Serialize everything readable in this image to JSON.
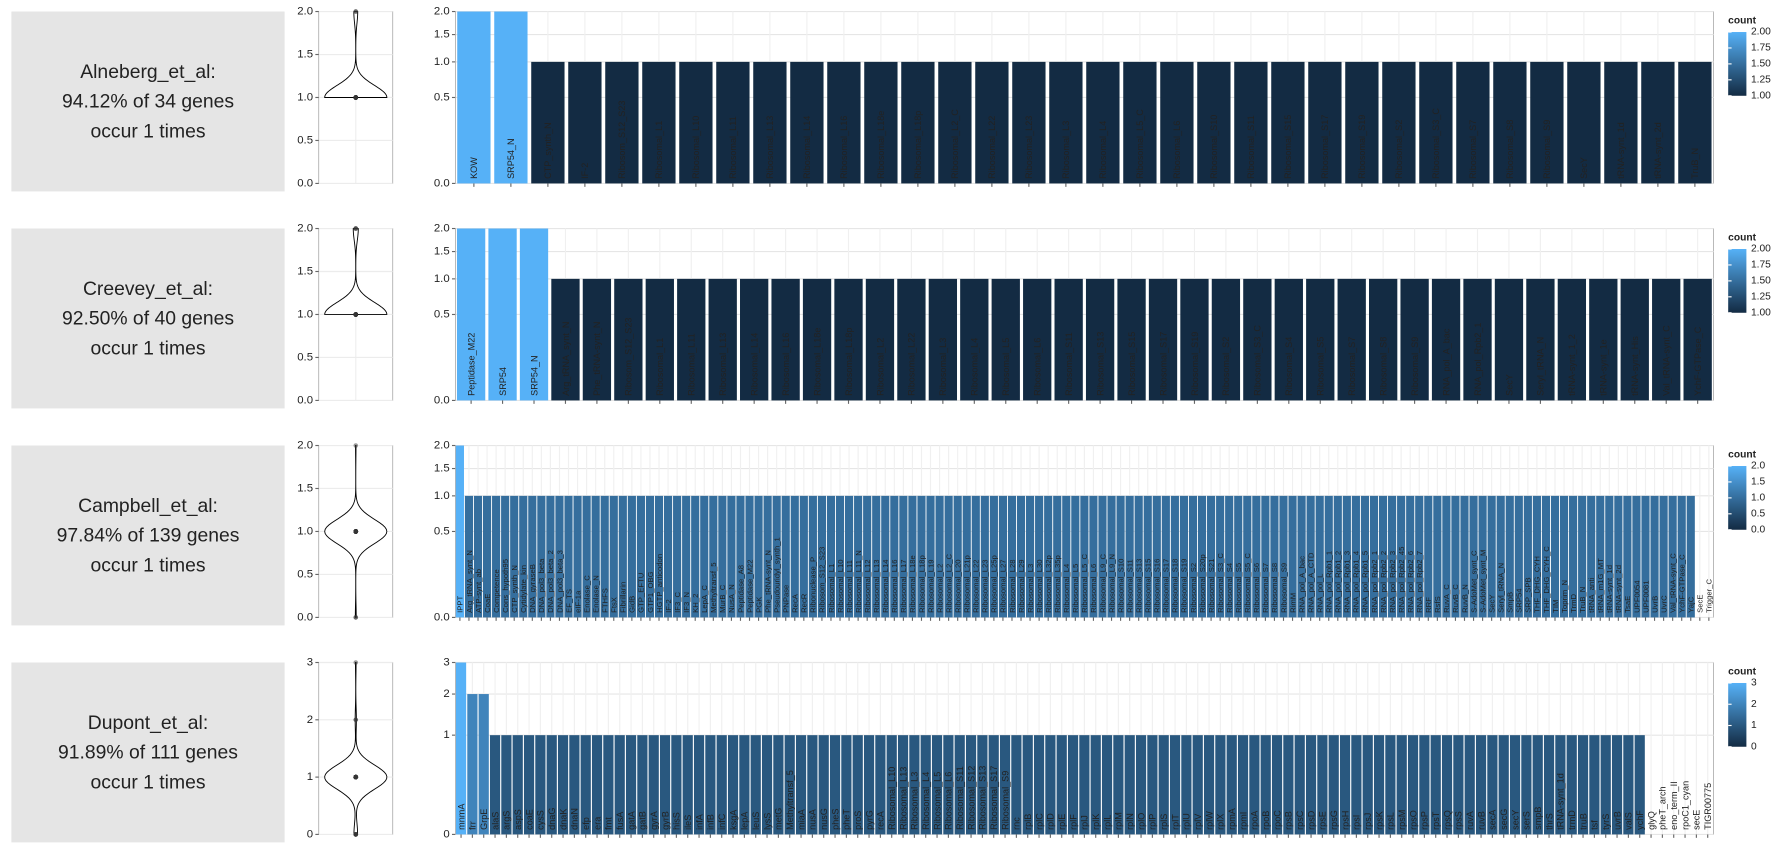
{
  "chart_data": [
    {
      "type": "bar",
      "title_lines": [
        "Alneberg_et_al:",
        "94.12% of 34 genes",
        "occur 1 times"
      ],
      "categories": [
        "KOW",
        "SRP54_N",
        "CTP_synth_N",
        "IF-2",
        "Ribosom_S12_S23",
        "Ribosomal_L1",
        "Ribosomal_L10",
        "Ribosomal_L11",
        "Ribosomal_L13",
        "Ribosomal_L14",
        "Ribosomal_L16",
        "Ribosomal_L18e",
        "Ribosomal_L18p",
        "Ribosomal_L2_C",
        "Ribosomal_L22",
        "Ribosomal_L23",
        "Ribosomal_L3",
        "Ribosomal_L4",
        "Ribosomal_L5_C",
        "Ribosomal_L6",
        "Ribosomal_S10",
        "Ribosomal_S11",
        "Ribosomal_S15",
        "Ribosomal_S17",
        "Ribosomal_S19",
        "Ribosomal_S2",
        "Ribosomal_S3_C",
        "Ribosomal_S7",
        "Ribosomal_S8",
        "Ribosomal_S9",
        "SecY",
        "tRNA-synt_1d",
        "tRNA-synt_2d",
        "TruB_N"
      ],
      "values": [
        2,
        2,
        1,
        1,
        1,
        1,
        1,
        1,
        1,
        1,
        1,
        1,
        1,
        1,
        1,
        1,
        1,
        1,
        1,
        1,
        1,
        1,
        1,
        1,
        1,
        1,
        1,
        1,
        1,
        1,
        1,
        1,
        1,
        1
      ],
      "ylim": [
        0,
        2
      ],
      "yscale": "sqrt",
      "yticks": [
        {
          "value": 0,
          "label": "0.0"
        },
        0.5,
        {
          "value": 1,
          "label": "1.0"
        },
        1.5,
        {
          "value": 2,
          "label": "2.0"
        }
      ],
      "violin": {
        "ylim": [
          0,
          2
        ],
        "yticks": [
          {
            "value": 0,
            "label": "0.0"
          },
          0.5,
          {
            "value": 1,
            "label": "1.0"
          },
          1.5,
          {
            "value": 2,
            "label": "2.0"
          }
        ]
      },
      "legend": {
        "title": "count",
        "lim": [
          1,
          2
        ],
        "color_low": "#132B43",
        "color_high": "#56B1F7",
        "ticks": [
          {
            "value": 2,
            "label": "2.00"
          },
          {
            "value": 1.75,
            "label": "1.75"
          },
          {
            "value": 1.5,
            "label": "1.50"
          },
          {
            "value": 1.25,
            "label": "1.25"
          },
          {
            "value": 1,
            "label": "1.00"
          }
        ]
      }
    },
    {
      "type": "bar",
      "title_lines": [
        "Creevey_et_al:",
        "92.50% of 40 genes",
        "occur 1 times"
      ],
      "categories": [
        "Peptidase_M22",
        "SRP54",
        "SRP54_N",
        "Arg_tRNA_synt_N",
        "Phe_tRNA-synt_N",
        "Ribosom_S12_S23",
        "Ribosomal_L1",
        "Ribosomal_L11",
        "Ribosomal_L13",
        "Ribosomal_L14",
        "Ribosomal_L16",
        "Ribosomal_L18e",
        "Ribosomal_L18p",
        "Ribosomal_L2",
        "Ribosomal_L22",
        "Ribosomal_L3",
        "Ribosomal_L4",
        "Ribosomal_L5",
        "Ribosomal_L6",
        "Ribosomal_S11",
        "Ribosomal_S13",
        "Ribosomal_S15",
        "Ribosomal_S17",
        "Ribosomal_S19",
        "Ribosomal_S2",
        "Ribosomal_S3_C",
        "Ribosomal_S4",
        "Ribosomal_S5",
        "Ribosomal_S7",
        "Ribosomal_S8",
        "Ribosomal_S9",
        "RNA_pol_A_bac",
        "RNA_pol_Rpb2_1",
        "SecY",
        "Seryl_tRNA_N",
        "tRNA-synt_1_2",
        "tRNA-synt_1e",
        "tRNA-synt_His",
        "Val_tRNA-synt_C",
        "YchF-GTPase_C"
      ],
      "values": [
        2,
        2,
        2,
        1,
        1,
        1,
        1,
        1,
        1,
        1,
        1,
        1,
        1,
        1,
        1,
        1,
        1,
        1,
        1,
        1,
        1,
        1,
        1,
        1,
        1,
        1,
        1,
        1,
        1,
        1,
        1,
        1,
        1,
        1,
        1,
        1,
        1,
        1,
        1,
        1
      ],
      "ylim": [
        0,
        2
      ],
      "yscale": "sqrt",
      "yticks": [
        {
          "value": 0,
          "label": "0.0"
        },
        0.5,
        {
          "value": 1,
          "label": "1.0"
        },
        1.5,
        {
          "value": 2,
          "label": "2.0"
        }
      ],
      "violin": {
        "ylim": [
          0,
          2
        ],
        "yticks": [
          {
            "value": 0,
            "label": "0.0"
          },
          0.5,
          {
            "value": 1,
            "label": "1.0"
          },
          1.5,
          {
            "value": 2,
            "label": "2.0"
          }
        ]
      },
      "legend": {
        "title": "count",
        "lim": [
          1,
          2
        ],
        "color_low": "#132B43",
        "color_high": "#56B1F7",
        "ticks": [
          {
            "value": 2,
            "label": "2.00"
          },
          {
            "value": 1.75,
            "label": "1.75"
          },
          {
            "value": 1.5,
            "label": "1.50"
          },
          {
            "value": 1.25,
            "label": "1.25"
          },
          {
            "value": 1,
            "label": "1.00"
          }
        ]
      }
    },
    {
      "type": "bar",
      "title_lines": [
        "Campbell_et_al:",
        "97.84% of 139 genes",
        "occur 1 times"
      ],
      "categories": [
        "IPPT",
        "Arg_tRNA_synt_N",
        "ATP-synt_ab",
        "CoaE",
        "Competence",
        "Cons_hypoth95",
        "CTP_synth_N",
        "Cytidylate_kin",
        "DNA_gyraseB",
        "DNA_pol3_beta",
        "DNA_pol3_beta_2",
        "DNA_pol3_beta_3",
        "EF_TS",
        "eIF-1a",
        "Enolase_C",
        "Enolase_N",
        "FTHFS",
        "FtsX",
        "Fibrillarin",
        "GidB",
        "GTP_EFTU",
        "GTP1_OBG",
        "HGTP_anticodon",
        "IF-2",
        "IF3_C",
        "IF3_N",
        "KH_2",
        "LepA_C",
        "Methyltransf_5",
        "MurB_C",
        "NusA_N",
        "Peptidase_A8",
        "Peptidase_M22",
        "PGK",
        "Phe_tRNA-synt_N",
        "Pseudouridyl_synth_1",
        "PNPase",
        "RecA",
        "RecR",
        "Ribonuclease_P",
        "Ribosom_S12_S23",
        "Ribosomal_L1",
        "Ribosomal_L10",
        "Ribosomal_L11",
        "Ribosomal_L11_N",
        "Ribosomal_L12",
        "Ribosomal_L13",
        "Ribosomal_L14",
        "Ribosomal_L16",
        "Ribosomal_L17",
        "Ribosomal_L18e",
        "Ribosomal_L18p",
        "Ribosomal_L19",
        "Ribosomal_L2",
        "Ribosomal_L2_C",
        "Ribosomal_L20",
        "Ribosomal_L21p",
        "Ribosomal_L22",
        "Ribosomal_L23",
        "Ribosomal_L25p",
        "Ribosomal_L27",
        "Ribosomal_L28",
        "Ribosomal_L29",
        "Ribosomal_L3",
        "Ribosomal_L30",
        "Ribosomal_L32p",
        "Ribosomal_L35p",
        "Ribosomal_L4",
        "Ribosomal_L5",
        "Ribosomal_L5_C",
        "Ribosomal_L6",
        "Ribosomal_L9_C",
        "Ribosomal_L9_N",
        "Ribosomal_S10",
        "Ribosomal_S11",
        "Ribosomal_S13",
        "Ribosomal_S15",
        "Ribosomal_S16",
        "Ribosomal_S17",
        "Ribosomal_S18",
        "Ribosomal_S19",
        "Ribosomal_S2",
        "Ribosomal_S20p",
        "Ribosomal_S21",
        "Ribosomal_S3_C",
        "Ribosomal_S4",
        "Ribosomal_S5",
        "Ribosomal_S5_C",
        "Ribosomal_S6",
        "Ribosomal_S7",
        "Ribosomal_S8",
        "Ribosomal_S9",
        "RimM",
        "RNA_pol_A_bac",
        "RNA_pol_A_CTD",
        "RNA_pol_L",
        "RNA_pol_Rpb1_1",
        "RNA_pol_Rpb1_2",
        "RNA_pol_Rpb1_3",
        "RNA_pol_Rpb1_4",
        "RNA_pol_Rpb1_5",
        "RNA_pol_Rpb2_1",
        "RNA_pol_Rpb2_2",
        "RNA_pol_Rpb2_3",
        "RNA_pol_Rpb2_45",
        "RNA_pol_Rpb2_6",
        "RNA_pol_Rpb2_7",
        "RRF",
        "RsfS",
        "RuvA_C",
        "RuvB_C",
        "RuvB_N",
        "S-AdoMet_synt_C",
        "S-AdoMet_synt_M",
        "SecY",
        "Seryl_tRNA_N",
        "SmpB",
        "SRP54",
        "SRP_SPB",
        "THF_DHG_CYH",
        "THF_DHG_CYH_C",
        "TIM",
        "Toprim_N",
        "TrmD",
        "TruB_N",
        "tRNA_anti",
        "tRNA_m1G_MT",
        "tRNA-synt_1d",
        "tRNA-synt_2d",
        "TsaE",
        "UPF0054",
        "UPF0081",
        "UvrB",
        "UvrC",
        "Val_tRNA-synt_C",
        "YchF-GTPase_C",
        "YajC",
        "SecE",
        "Trigger_C"
      ],
      "values": [
        2,
        1,
        1,
        1,
        1,
        1,
        1,
        1,
        1,
        1,
        1,
        1,
        1,
        1,
        1,
        1,
        1,
        1,
        1,
        1,
        1,
        1,
        1,
        1,
        1,
        1,
        1,
        1,
        1,
        1,
        1,
        1,
        1,
        1,
        1,
        1,
        1,
        1,
        1,
        1,
        1,
        1,
        1,
        1,
        1,
        1,
        1,
        1,
        1,
        1,
        1,
        1,
        1,
        1,
        1,
        1,
        1,
        1,
        1,
        1,
        1,
        1,
        1,
        1,
        1,
        1,
        1,
        1,
        1,
        1,
        1,
        1,
        1,
        1,
        1,
        1,
        1,
        1,
        1,
        1,
        1,
        1,
        1,
        1,
        1,
        1,
        1,
        1,
        1,
        1,
        1,
        1,
        1,
        1,
        1,
        1,
        1,
        1,
        1,
        1,
        1,
        1,
        1,
        1,
        1,
        1,
        1,
        1,
        1,
        1,
        1,
        1,
        1,
        1,
        1,
        1,
        1,
        1,
        1,
        1,
        1,
        1,
        1,
        1,
        1,
        1,
        1,
        1,
        1,
        1,
        1,
        1,
        1,
        1,
        1,
        1,
        1,
        0,
        0
      ],
      "ylim": [
        0,
        2
      ],
      "yscale": "sqrt",
      "yticks": [
        {
          "value": 0,
          "label": "0.0"
        },
        0.5,
        {
          "value": 1,
          "label": "1.0"
        },
        1.5,
        {
          "value": 2,
          "label": "2.0"
        }
      ],
      "violin": {
        "ylim": [
          0,
          2
        ],
        "yticks": [
          {
            "value": 0,
            "label": "0.0"
          },
          0.5,
          {
            "value": 1,
            "label": "1.0"
          },
          1.5,
          {
            "value": 2,
            "label": "2.0"
          }
        ]
      },
      "legend": {
        "title": "count",
        "lim": [
          0,
          2
        ],
        "color_low": "#132B43",
        "color_high": "#56B1F7",
        "ticks": [
          {
            "value": 2,
            "label": "2.0"
          },
          1.5,
          {
            "value": 1,
            "label": "1.0"
          },
          0.5,
          {
            "value": 0,
            "label": "0.0"
          }
        ]
      }
    },
    {
      "type": "bar",
      "title_lines": [
        "Dupont_et_al:",
        "91.89% of 111 genes",
        "occur 1 times"
      ],
      "categories": [
        "mnmA",
        "frr",
        "GrpE",
        "alaS",
        "argS",
        "aspS",
        "coaE",
        "cysS",
        "dnaG",
        "dnaK",
        "dnaN",
        "efp",
        "era",
        "fmt",
        "fusA",
        "gatA",
        "gatB",
        "gyrA",
        "gyrB",
        "hisS",
        "ileS",
        "infA",
        "infB",
        "infC",
        "ksgA",
        "lepA",
        "leuS",
        "lysS",
        "metG",
        "Methyltransf_5",
        "miaA",
        "nusA",
        "nusG",
        "pheS",
        "pheT",
        "proS",
        "pyrG",
        "recA",
        "Ribosomal_L10",
        "Ribosomal_L13",
        "Ribosomal_L3",
        "Ribosomal_L4",
        "Ribosomal_L5",
        "Ribosomal_L6",
        "Ribosomal_S11",
        "Ribosomal_S12",
        "Ribosomal_S13",
        "Ribosomal_S17",
        "Ribosomal_S9",
        "rnc",
        "rplB",
        "rplC",
        "rplD",
        "rplE",
        "rplF",
        "rplJ",
        "rplK",
        "rplL",
        "rplM",
        "rplN",
        "rplO",
        "rplP",
        "rplS",
        "rplT",
        "rplU",
        "rplV",
        "rplW",
        "rplX",
        "rpmA",
        "rpmI",
        "rpoA",
        "rpoB",
        "rpoC",
        "rpsB",
        "rpsC",
        "rpsD",
        "rpsE",
        "rpsG",
        "rpsH",
        "rpsI",
        "rpsJ",
        "rpsK",
        "rpsL",
        "rpsM",
        "rpsO",
        "rpsP",
        "rpsT",
        "rpsQ",
        "rpsS",
        "ruvA",
        "ruvB",
        "secA",
        "secG",
        "secY",
        "serS",
        "smpB",
        "thrS",
        "tRNA-synt_1d",
        "trmD",
        "truB",
        "tsf",
        "tyrS",
        "uvrB",
        "valS",
        "ychF",
        "glyQ",
        "pheT_arch",
        "eno_term_II",
        "rpoC1_cyan",
        "secE",
        "TIGR00775"
      ],
      "values": [
        3,
        2,
        2,
        1,
        1,
        1,
        1,
        1,
        1,
        1,
        1,
        1,
        1,
        1,
        1,
        1,
        1,
        1,
        1,
        1,
        1,
        1,
        1,
        1,
        1,
        1,
        1,
        1,
        1,
        1,
        1,
        1,
        1,
        1,
        1,
        1,
        1,
        1,
        1,
        1,
        1,
        1,
        1,
        1,
        1,
        1,
        1,
        1,
        1,
        1,
        1,
        1,
        1,
        1,
        1,
        1,
        1,
        1,
        1,
        1,
        1,
        1,
        1,
        1,
        1,
        1,
        1,
        1,
        1,
        1,
        1,
        1,
        1,
        1,
        1,
        1,
        1,
        1,
        1,
        1,
        1,
        1,
        1,
        1,
        1,
        1,
        1,
        1,
        1,
        1,
        1,
        1,
        1,
        1,
        1,
        1,
        1,
        1,
        1,
        1,
        1,
        1,
        1,
        1,
        1,
        0,
        0,
        0,
        0,
        0,
        0
      ],
      "ylim": [
        0,
        3
      ],
      "yscale": "sqrt",
      "yticks": [
        0,
        1,
        2,
        3
      ],
      "violin": {
        "ylim": [
          0,
          3
        ],
        "yticks": [
          0,
          1,
          2,
          3
        ]
      },
      "legend": {
        "title": "count",
        "lim": [
          0,
          3
        ],
        "color_low": "#132B43",
        "color_high": "#56B1F7",
        "ticks": [
          3,
          2,
          1,
          0
        ]
      }
    }
  ]
}
